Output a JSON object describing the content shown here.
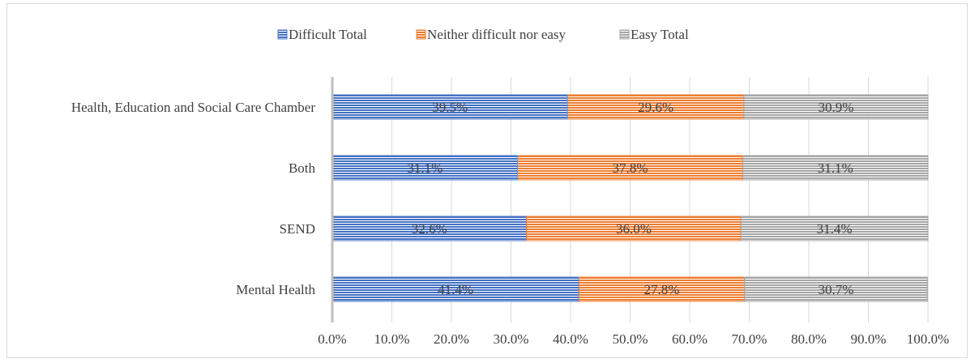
{
  "chart_data": {
    "type": "bar",
    "orientation": "horizontal",
    "stacked": true,
    "categories": [
      "Health, Education and Social Care Chamber",
      "Both",
      "SEND",
      "Mental Health"
    ],
    "series": [
      {
        "name": "Difficult Total",
        "color": "#4472c4",
        "values": [
          39.5,
          31.1,
          32.6,
          41.4
        ],
        "labels": [
          "39.5%",
          "31.1%",
          "32.6%",
          "41.4%"
        ]
      },
      {
        "name": "Neither difficult nor easy",
        "color": "#ed7d31",
        "values": [
          29.6,
          37.8,
          36.0,
          27.8
        ],
        "labels": [
          "29.6%",
          "37.8%",
          "36.0%",
          "27.8%"
        ]
      },
      {
        "name": "Easy Total",
        "color": "#a5a5a5",
        "values": [
          30.9,
          31.1,
          31.4,
          30.7
        ],
        "labels": [
          "30.9%",
          "31.1%",
          "31.4%",
          "30.7%"
        ]
      }
    ],
    "x_ticks": [
      "0.0%",
      "10.0%",
      "20.0%",
      "30.0%",
      "40.0%",
      "50.0%",
      "60.0%",
      "70.0%",
      "80.0%",
      "90.0%",
      "100.0%"
    ],
    "xlim": [
      0,
      100
    ],
    "grid": true,
    "legend_position": "top"
  }
}
